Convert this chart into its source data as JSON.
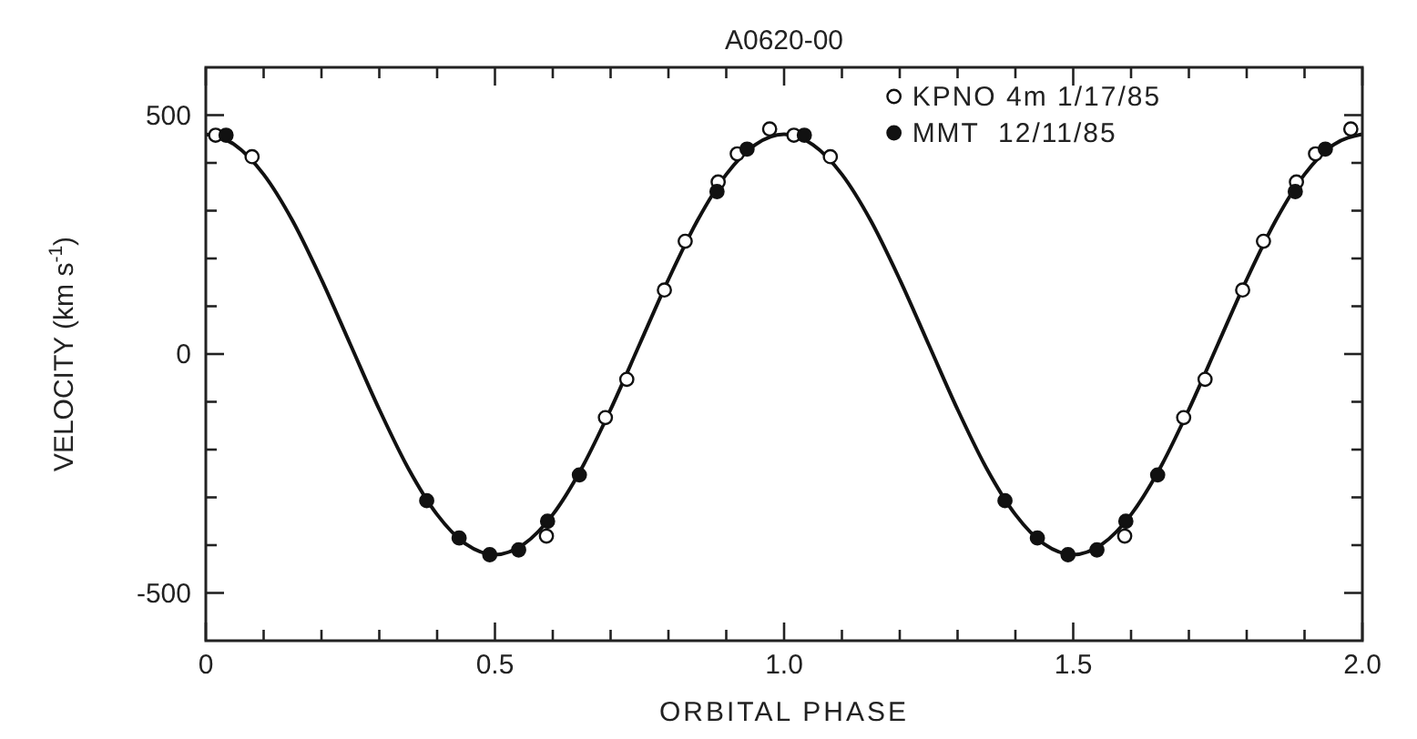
{
  "chart_data": {
    "type": "scatter",
    "title": "A0620-00",
    "xlabel": "ORBITAL PHASE",
    "ylabel": "VELOCITY (km s$^{-1}$)",
    "xlim": [
      0,
      2
    ],
    "ylim": [
      -600,
      600
    ],
    "xticks": [
      {
        "value": 0,
        "label": "0"
      },
      {
        "value": 0.1,
        "label": null
      },
      {
        "value": 0.2,
        "label": null
      },
      {
        "value": 0.3,
        "label": null
      },
      {
        "value": 0.4,
        "label": null
      },
      0.5,
      {
        "value": 0.6,
        "label": null
      },
      {
        "value": 0.7,
        "label": null
      },
      {
        "value": 0.8,
        "label": null
      },
      {
        "value": 0.9,
        "label": null
      },
      {
        "value": 1,
        "label": "1.0"
      },
      {
        "value": 1.1,
        "label": null
      },
      {
        "value": 1.2,
        "label": null
      },
      {
        "value": 1.3,
        "label": null
      },
      {
        "value": 1.4,
        "label": null
      },
      1.5,
      {
        "value": 1.6,
        "label": null
      },
      {
        "value": 1.7,
        "label": null
      },
      {
        "value": 1.8,
        "label": null
      },
      {
        "value": 1.9,
        "label": null
      },
      {
        "value": 2,
        "label": "2.0"
      }
    ],
    "yticks": [
      -500,
      {
        "value": -400,
        "label": null
      },
      {
        "value": -300,
        "label": null
      },
      {
        "value": -200,
        "label": null
      },
      {
        "value": -100,
        "label": null
      },
      0,
      {
        "value": 100,
        "label": null
      },
      {
        "value": 200,
        "label": null
      },
      {
        "value": 300,
        "label": null
      },
      {
        "value": 400,
        "label": null
      },
      500
    ],
    "grid": false,
    "legend": "top right",
    "marker": "circle",
    "series": [
      {
        "type": "line",
        "color": "#111111",
        "marker": "none",
        "x": [
          0,
          0.05,
          0.1,
          0.15,
          0.2,
          0.25,
          0.3,
          0.35,
          0.4,
          0.45,
          0.5,
          0.55,
          0.6,
          0.65,
          0.7,
          0.75,
          0.8,
          0.85,
          0.9,
          0.95,
          1,
          1.05,
          1.1,
          1.15,
          1.2,
          1.25,
          1.3,
          1.35,
          1.4,
          1.45,
          1.5,
          1.55,
          1.6,
          1.65,
          1.7,
          1.75,
          1.8,
          1.85,
          1.9,
          1.95,
          2
        ],
        "values": [
          460,
          438,
          376,
          279,
          156,
          20,
          -116,
          -239,
          -336,
          -398,
          -420,
          -398,
          -336,
          -239,
          -116,
          20,
          156,
          279,
          376,
          438,
          460,
          438,
          376,
          279,
          156,
          20,
          -116,
          -239,
          -336,
          -398,
          -420,
          -398,
          -336,
          -239,
          -116,
          20,
          156,
          279,
          376,
          438,
          460
        ]
      },
      {
        "name": "KPNO 4m 1/17/85",
        "color": "#ffffff",
        "x": [
          0.017,
          0.08,
          0.589,
          0.691,
          0.728,
          0.793,
          0.829,
          0.886,
          0.919,
          0.975,
          1.017,
          1.08,
          1.589,
          1.691,
          1.728,
          1.793,
          1.829,
          1.886,
          1.919,
          1.98
        ],
        "values": [
          458,
          413,
          -381,
          -133,
          -53,
          134,
          236,
          360,
          419,
          471,
          458,
          413,
          -381,
          -133,
          -53,
          134,
          236,
          360,
          419,
          471
        ]
      },
      {
        "name": "MMT  12/11/85",
        "color": "#111111",
        "x": [
          0.035,
          0.382,
          0.438,
          0.491,
          0.541,
          0.591,
          0.646,
          0.884,
          0.936,
          1.035,
          1.382,
          1.438,
          1.491,
          1.541,
          1.591,
          1.646,
          1.884,
          1.936
        ],
        "values": [
          458,
          -307,
          -385,
          -420,
          -410,
          -350,
          -253,
          340,
          429,
          458,
          -307,
          -385,
          -420,
          -410,
          -350,
          -253,
          340,
          429
        ]
      }
    ]
  }
}
